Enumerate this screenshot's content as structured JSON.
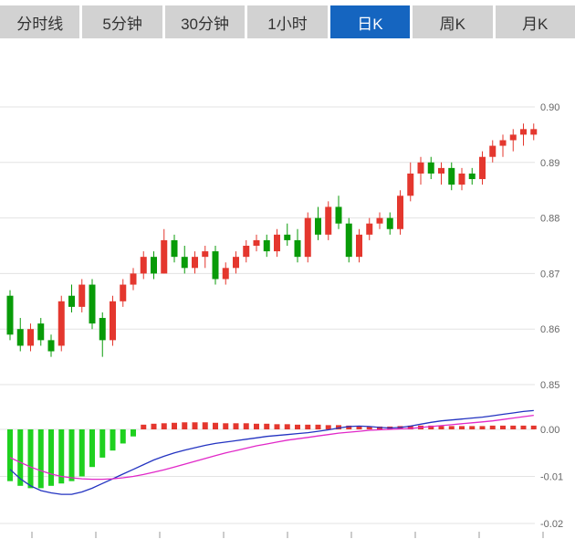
{
  "tabs": {
    "items": [
      {
        "key": "timeline",
        "label": "分时线",
        "selected": false
      },
      {
        "key": "5min",
        "label": "5分钟",
        "selected": false
      },
      {
        "key": "30min",
        "label": "30分钟",
        "selected": false
      },
      {
        "key": "1hour",
        "label": "1小时",
        "selected": false
      },
      {
        "key": "daily-k",
        "label": "日K",
        "selected": true
      },
      {
        "key": "weekly-k",
        "label": "周K",
        "selected": false
      },
      {
        "key": "monthly-k",
        "label": "月K",
        "selected": false
      }
    ],
    "colors": {
      "tab_bg": "#d2d2d2",
      "tab_text": "#333333",
      "selected_bg": "#1565c0",
      "selected_text": "#ffffff"
    }
  },
  "chart_data": {
    "type": "candlestick+macd",
    "title": "",
    "legend_position": "none",
    "grid": true,
    "colors": {
      "up": "#e4372e",
      "down": "#089b08",
      "hist_up": "#e4372e",
      "hist_down": "#1fd11f",
      "dif_line": "#2333c1",
      "dea_line": "#e128c8",
      "grid": "#e3e3e3",
      "axis_text": "#666666",
      "tick": "#999999"
    },
    "price_axis": {
      "ticks": [
        {
          "value": 0.9,
          "label": "0.90"
        },
        {
          "value": 0.89,
          "label": "0.89"
        },
        {
          "value": 0.88,
          "label": "0.88"
        },
        {
          "value": 0.87,
          "label": "0.87"
        },
        {
          "value": 0.86,
          "label": "0.86"
        },
        {
          "value": 0.85,
          "label": "0.85"
        }
      ],
      "range": [
        0.85,
        0.91
      ]
    },
    "macd_axis": {
      "ticks": [
        {
          "value": 0.0,
          "label": "0.00"
        },
        {
          "value": -0.01,
          "label": "-0.01"
        },
        {
          "value": -0.02,
          "label": "-0.02"
        }
      ],
      "range": [
        -0.02,
        0.005
      ]
    },
    "candles": [
      [
        0.866,
        0.867,
        0.858,
        0.859
      ],
      [
        0.86,
        0.862,
        0.856,
        0.857
      ],
      [
        0.857,
        0.861,
        0.856,
        0.86
      ],
      [
        0.861,
        0.862,
        0.857,
        0.858
      ],
      [
        0.858,
        0.859,
        0.855,
        0.856
      ],
      [
        0.857,
        0.866,
        0.856,
        0.865
      ],
      [
        0.866,
        0.868,
        0.863,
        0.864
      ],
      [
        0.864,
        0.869,
        0.863,
        0.868
      ],
      [
        0.868,
        0.869,
        0.86,
        0.861
      ],
      [
        0.862,
        0.863,
        0.855,
        0.858
      ],
      [
        0.858,
        0.866,
        0.857,
        0.865
      ],
      [
        0.865,
        0.869,
        0.864,
        0.868
      ],
      [
        0.868,
        0.871,
        0.867,
        0.87
      ],
      [
        0.87,
        0.874,
        0.869,
        0.873
      ],
      [
        0.873,
        0.874,
        0.869,
        0.87
      ],
      [
        0.87,
        0.878,
        0.87,
        0.876
      ],
      [
        0.876,
        0.877,
        0.872,
        0.873
      ],
      [
        0.873,
        0.875,
        0.87,
        0.871
      ],
      [
        0.871,
        0.874,
        0.87,
        0.873
      ],
      [
        0.873,
        0.875,
        0.871,
        0.874
      ],
      [
        0.874,
        0.875,
        0.868,
        0.869
      ],
      [
        0.869,
        0.872,
        0.868,
        0.871
      ],
      [
        0.871,
        0.874,
        0.87,
        0.873
      ],
      [
        0.873,
        0.876,
        0.872,
        0.875
      ],
      [
        0.875,
        0.877,
        0.874,
        0.876
      ],
      [
        0.876,
        0.877,
        0.873,
        0.874
      ],
      [
        0.874,
        0.878,
        0.873,
        0.877
      ],
      [
        0.877,
        0.879,
        0.875,
        0.876
      ],
      [
        0.876,
        0.878,
        0.872,
        0.873
      ],
      [
        0.873,
        0.881,
        0.872,
        0.88
      ],
      [
        0.88,
        0.882,
        0.876,
        0.877
      ],
      [
        0.877,
        0.883,
        0.876,
        0.882
      ],
      [
        0.882,
        0.884,
        0.878,
        0.879
      ],
      [
        0.879,
        0.88,
        0.872,
        0.873
      ],
      [
        0.873,
        0.878,
        0.872,
        0.877
      ],
      [
        0.877,
        0.88,
        0.876,
        0.879
      ],
      [
        0.879,
        0.881,
        0.878,
        0.88
      ],
      [
        0.88,
        0.881,
        0.877,
        0.878
      ],
      [
        0.878,
        0.885,
        0.877,
        0.884
      ],
      [
        0.884,
        0.89,
        0.883,
        0.888
      ],
      [
        0.888,
        0.891,
        0.886,
        0.89
      ],
      [
        0.89,
        0.891,
        0.887,
        0.888
      ],
      [
        0.888,
        0.89,
        0.886,
        0.889
      ],
      [
        0.889,
        0.89,
        0.885,
        0.886
      ],
      [
        0.886,
        0.889,
        0.885,
        0.888
      ],
      [
        0.888,
        0.889,
        0.886,
        0.887
      ],
      [
        0.887,
        0.892,
        0.886,
        0.891
      ],
      [
        0.891,
        0.894,
        0.89,
        0.893
      ],
      [
        0.893,
        0.895,
        0.891,
        0.894
      ],
      [
        0.894,
        0.896,
        0.892,
        0.895
      ],
      [
        0.895,
        0.897,
        0.893,
        0.896
      ],
      [
        0.895,
        0.897,
        0.894,
        0.896
      ]
    ],
    "macd": {
      "histogram": [
        -0.011,
        -0.012,
        -0.0125,
        -0.0125,
        -0.012,
        -0.0115,
        -0.011,
        -0.01,
        -0.008,
        -0.006,
        -0.0045,
        -0.003,
        -0.0015,
        0.001,
        0.0012,
        0.0013,
        0.0014,
        0.0015,
        0.0015,
        0.0015,
        0.0014,
        0.0013,
        0.0013,
        0.0013,
        0.0012,
        0.0012,
        0.0011,
        0.0011,
        0.001,
        0.001,
        0.001,
        0.0009,
        0.0009,
        0.0008,
        0.0007,
        0.0006,
        0.0006,
        0.0006,
        0.0007,
        0.0008,
        0.0008,
        0.0008,
        0.0007,
        0.0007,
        0.0007,
        0.0007,
        0.0007,
        0.0008,
        0.0008,
        0.0008,
        0.0008,
        0.0008
      ],
      "dif": [
        -0.0085,
        -0.0105,
        -0.012,
        -0.013,
        -0.0135,
        -0.0138,
        -0.0138,
        -0.0133,
        -0.0125,
        -0.0115,
        -0.0105,
        -0.0095,
        -0.0085,
        -0.0075,
        -0.0065,
        -0.0057,
        -0.005,
        -0.0044,
        -0.0039,
        -0.0034,
        -0.003,
        -0.0027,
        -0.0024,
        -0.0021,
        -0.0018,
        -0.0015,
        -0.0013,
        -0.0011,
        -0.0009,
        -0.0007,
        -0.0004,
        -0.0001,
        0.0003,
        0.0006,
        0.0007,
        0.0006,
        0.0004,
        0.0003,
        0.0004,
        0.0007,
        0.0011,
        0.0015,
        0.0018,
        0.002,
        0.0022,
        0.0024,
        0.0026,
        0.0029,
        0.0032,
        0.0035,
        0.0038,
        0.004
      ],
      "dea": [
        -0.006,
        -0.007,
        -0.008,
        -0.0088,
        -0.0095,
        -0.01,
        -0.0103,
        -0.0105,
        -0.0106,
        -0.0106,
        -0.0105,
        -0.0103,
        -0.01,
        -0.0096,
        -0.0091,
        -0.0086,
        -0.008,
        -0.0074,
        -0.0068,
        -0.0062,
        -0.0056,
        -0.005,
        -0.0045,
        -0.004,
        -0.0035,
        -0.0031,
        -0.0027,
        -0.0023,
        -0.002,
        -0.0017,
        -0.0014,
        -0.0011,
        -0.0008,
        -0.0006,
        -0.0004,
        -0.0002,
        -0.0001,
        0.0,
        0.0001,
        0.0002,
        0.0004,
        0.0006,
        0.0008,
        0.001,
        0.0012,
        0.0014,
        0.0016,
        0.0018,
        0.0021,
        0.0024,
        0.0027,
        0.003
      ]
    }
  }
}
